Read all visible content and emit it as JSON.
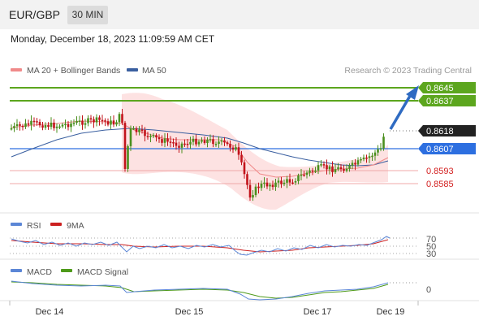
{
  "header": {
    "symbol": "EUR/GBP",
    "timeframe": "30 MIN",
    "datetime": "Monday, December 18, 2023 11:09:59 AM CET"
  },
  "colors": {
    "ma20": "#f08a8a",
    "ma50": "#3a5fa0",
    "resistance": "#5ca61e",
    "support_blue": "#2d6fe0",
    "support_pink": "#f0a8a8",
    "band_fill": "#fde2e2",
    "candle_up": "#4a8f1e",
    "candle_down": "#c2131b",
    "rsi": "#5b86d6",
    "ma9": "#cc2020",
    "macd": "#5b86d6",
    "macd_signal": "#4e9a1a",
    "arrow": "#2f6bc2"
  },
  "chart_data": [
    {
      "type": "line",
      "title": "",
      "legend": [
        {
          "name": "MA 20 + Bollinger Bands"
        },
        {
          "name": "MA 50"
        }
      ],
      "credit": "Research © 2023 Trading Central",
      "x_ticks": [
        "Dec 14",
        "Dec 15",
        "Dec 17",
        "Dec 19"
      ],
      "ylim": [
        0.857,
        0.865
      ],
      "levels": [
        {
          "label": "0.8645",
          "value": 0.8645,
          "kind": "resistance"
        },
        {
          "label": "0.8637",
          "value": 0.8637,
          "kind": "resistance"
        },
        {
          "label": "0.8618",
          "value": 0.8618,
          "kind": "last"
        },
        {
          "label": "0.8607",
          "value": 0.8607,
          "kind": "support_blue"
        },
        {
          "label": "0.8593",
          "value": 0.8593,
          "kind": "support_pink"
        },
        {
          "label": "0.8585",
          "value": 0.8585,
          "kind": "support_pink"
        }
      ],
      "forecast": {
        "from": 0.8618,
        "to": 0.8641
      }
    },
    {
      "type": "line",
      "legend": [
        {
          "name": "RSI"
        },
        {
          "name": "9MA"
        }
      ],
      "y_ticks": [
        "70",
        "50",
        "30"
      ]
    },
    {
      "type": "line",
      "legend": [
        {
          "name": "MACD"
        },
        {
          "name": "MACD Signal"
        }
      ],
      "y_ticks": [
        "0"
      ]
    }
  ]
}
